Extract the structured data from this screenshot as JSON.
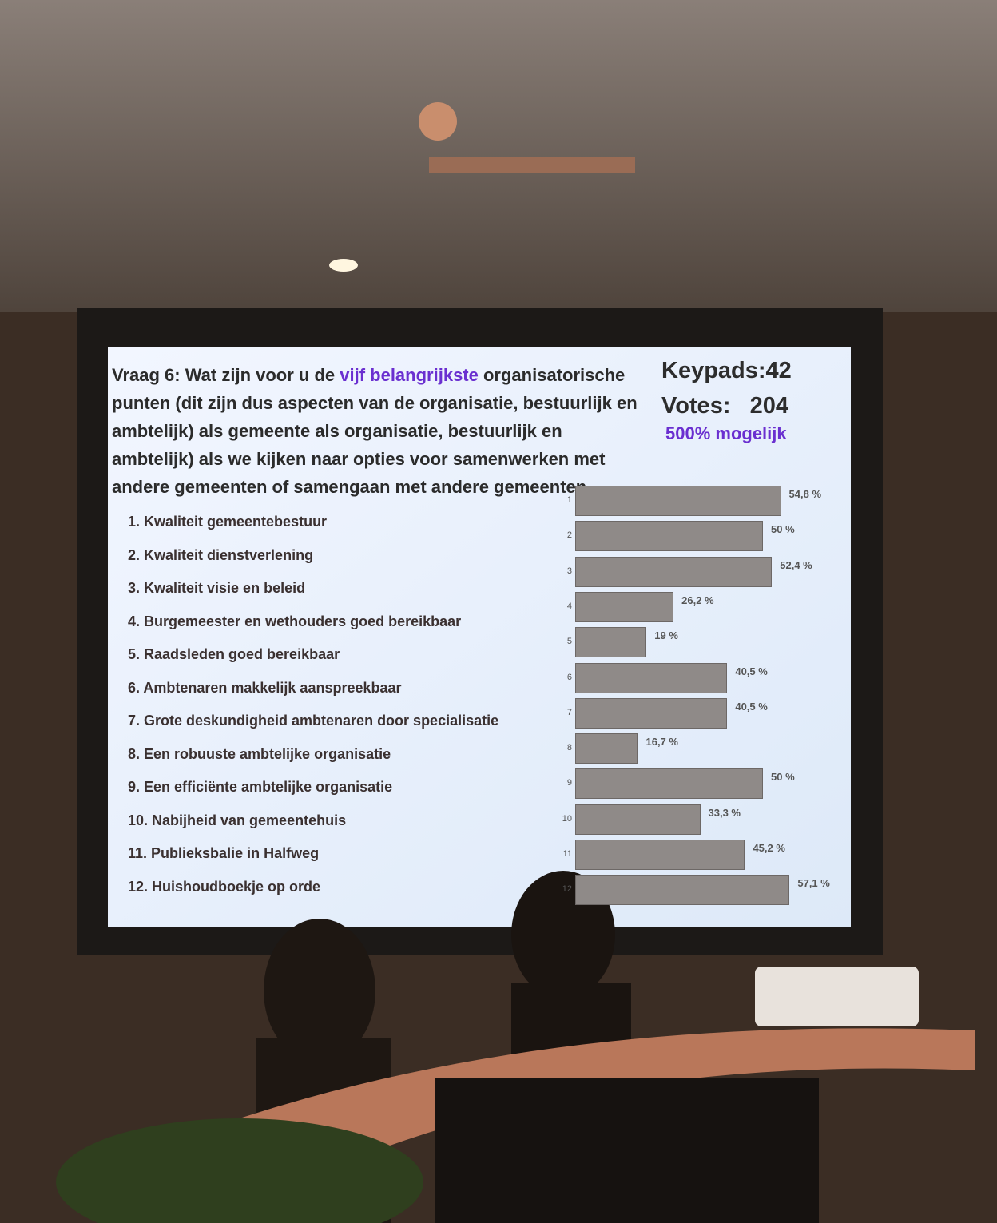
{
  "chart_data": {
    "type": "bar",
    "title_parts": [
      "Vraag 6: Wat zijn voor u de ",
      "vijf belangrijkste",
      " organisatorische punten (dit zijn dus aspecten van de organisatie, bestuurlijk en ambtelijk) als gemeente als organisatie, bestuurlijk en ambtelijk) als we kijken naar opties voor samenwerken met andere gemeenten of samengaan met andere gemeenten."
    ],
    "keypads": "Keypads:42",
    "votes": "Votes:   204",
    "possible": "500% mogelijk",
    "categories": [
      "1. Kwaliteit gemeentebestuur",
      "2. Kwaliteit dienstverlening",
      "3. Kwaliteit visie en beleid",
      "4. Burgemeester en wethouders goed bereikbaar",
      "5. Raadsleden goed bereikbaar",
      "6. Ambtenaren makkelijk aanspreekbaar",
      "7. Grote deskundigheid ambtenaren door specialisatie",
      "8. Een robuuste ambtelijke organisatie",
      "9. Een efficiënte ambtelijke organisatie",
      "10. Nabijheid van gemeentehuis",
      "11. Publieksbalie in Halfweg",
      "12. Huishoudboekje op orde"
    ],
    "bar_labels": [
      "1",
      "2",
      "3",
      "4",
      "5",
      "6",
      "7",
      "8",
      "9",
      "10",
      "11",
      "12"
    ],
    "values": [
      54.8,
      50,
      52.4,
      26.2,
      19,
      40.5,
      40.5,
      16.7,
      50,
      33.3,
      45.2,
      57.1
    ],
    "value_labels": [
      "54,8 %",
      "50 %",
      "52,4 %",
      "26,2 %",
      "19 %",
      "40,5 %",
      "40,5 %",
      "16,7 %",
      "50 %",
      "33,3 %",
      "45,2 %",
      "57,1 %"
    ],
    "color": "#8f8a88"
  }
}
